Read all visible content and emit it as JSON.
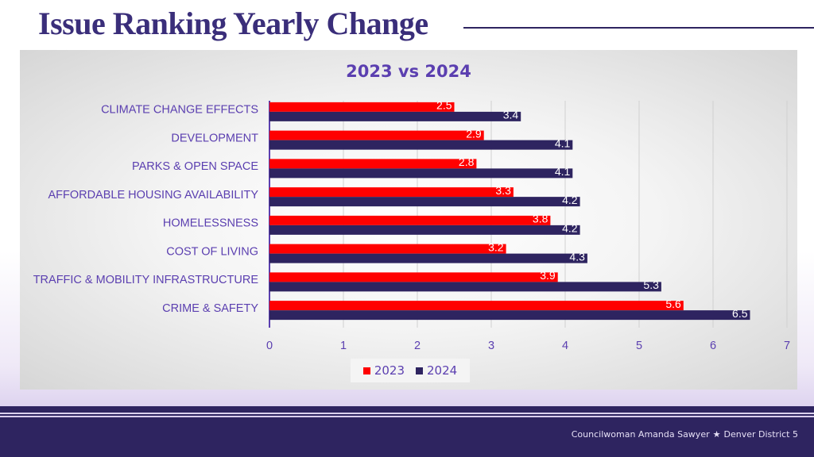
{
  "slide": {
    "title": "Issue Ranking Yearly Change"
  },
  "footer": {
    "author": "Councilwoman Amanda Sawyer",
    "separator": "★",
    "district": "Denver District 5"
  },
  "colors": {
    "series_2023": "#ff0000",
    "series_2024": "#2e2460",
    "accent": "#5b3fb0"
  },
  "chart_data": {
    "type": "bar",
    "orientation": "horizontal",
    "title": "2023 vs 2024",
    "categories": [
      "CLIMATE CHANGE EFFECTS",
      "DEVELOPMENT",
      "PARKS & OPEN SPACE",
      "AFFORDABLE HOUSING AVAILABILITY",
      "HOMELESSNESS",
      "COST OF LIVING",
      "TRAFFIC & MOBILITY INFRASTRUCTURE",
      "CRIME & SAFETY"
    ],
    "series": [
      {
        "name": "2023",
        "values": [
          2.5,
          2.9,
          2.8,
          3.3,
          3.8,
          3.2,
          3.9,
          5.6
        ]
      },
      {
        "name": "2024",
        "values": [
          3.4,
          4.1,
          4.1,
          4.2,
          4.2,
          4.3,
          5.3,
          6.5
        ]
      }
    ],
    "xlim": [
      0,
      7
    ],
    "xticks": [
      0,
      1,
      2,
      3,
      4,
      5,
      6,
      7
    ],
    "grid": true,
    "legend": "bottom-center",
    "xlabel": "",
    "ylabel": ""
  }
}
